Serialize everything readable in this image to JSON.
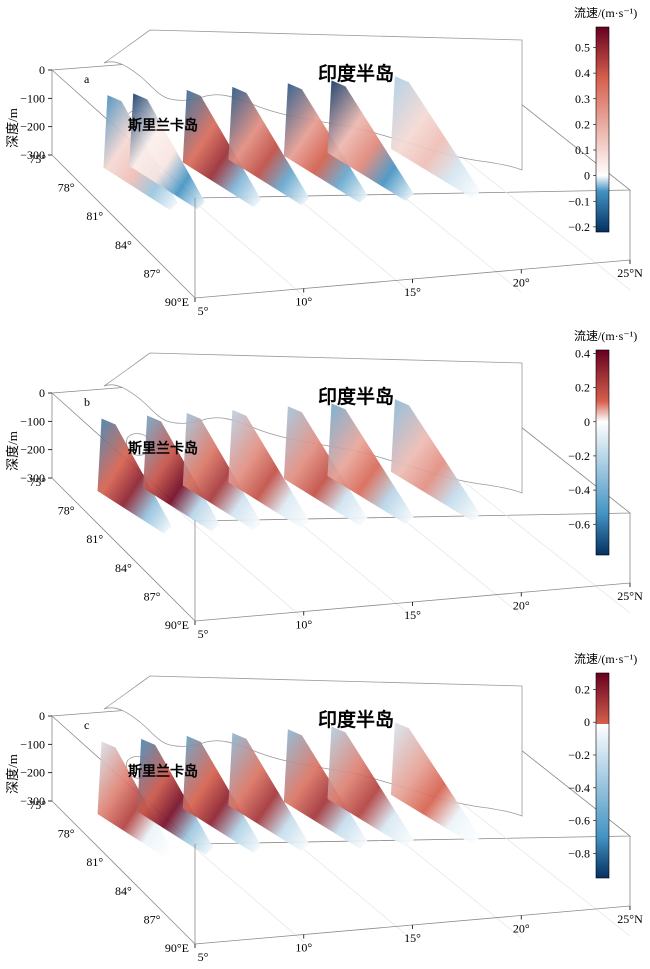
{
  "labels": {
    "region": "印度半岛",
    "island": "斯里兰卡岛",
    "depth_axis": "深度/m",
    "colorbar_title": "流速/(m·s⁻¹)"
  },
  "axes": {
    "depth_ticks": [
      "0",
      "−100",
      "−200",
      "−300"
    ],
    "lon_ticks": [
      "75°",
      "78°",
      "81°",
      "84°",
      "87°",
      "90°E"
    ],
    "lat_ticks": [
      "5°",
      "10°",
      "15°",
      "20°",
      "25°N"
    ]
  },
  "colors": {
    "positive_max": "#67001f",
    "positive": "#d6604d",
    "zero": "#ffffff",
    "negative": "#4393c3",
    "negative_max": "#053061",
    "frame": "#8a8a8a",
    "coast": "#9a9a9a"
  },
  "chart_data": [
    {
      "type": "heatmap",
      "panel": "a",
      "colorbar": {
        "range": [
          -0.22,
          0.58
        ],
        "ticks": [
          0.5,
          0.4,
          0.3,
          0.2,
          0.1,
          0,
          -0.1,
          -0.2
        ]
      },
      "sections": [
        {
          "lat": 6.5,
          "max": 0.12,
          "min": -0.12
        },
        {
          "lat": 7.8,
          "max": 0.05,
          "min": -0.22
        },
        {
          "lat": 10.5,
          "max": 0.45,
          "min": -0.15
        },
        {
          "lat": 12.8,
          "max": 0.35,
          "min": -0.18
        },
        {
          "lat": 15.6,
          "max": 0.3,
          "min": -0.18
        },
        {
          "lat": 17.8,
          "max": 0.22,
          "min": -0.22
        },
        {
          "lat": 21.0,
          "max": 0.12,
          "min": -0.05
        }
      ]
    },
    {
      "type": "heatmap",
      "panel": "b",
      "colorbar": {
        "range": [
          -0.78,
          0.42
        ],
        "ticks": [
          0.4,
          0.2,
          0,
          -0.2,
          -0.4,
          -0.6
        ]
      },
      "sections": [
        {
          "lat": 6.2,
          "max": 0.35,
          "min": -0.45
        },
        {
          "lat": 8.5,
          "max": 0.4,
          "min": -0.3
        },
        {
          "lat": 10.5,
          "max": 0.3,
          "min": -0.2
        },
        {
          "lat": 12.8,
          "max": 0.25,
          "min": -0.15
        },
        {
          "lat": 15.6,
          "max": 0.25,
          "min": -0.2
        },
        {
          "lat": 17.8,
          "max": 0.2,
          "min": -0.3
        },
        {
          "lat": 21.0,
          "max": 0.15,
          "min": -0.25
        }
      ]
    },
    {
      "type": "heatmap",
      "panel": "c",
      "colorbar": {
        "range": [
          -0.95,
          0.3
        ],
        "ticks": [
          0.2,
          0,
          -0.2,
          -0.4,
          -0.6,
          -0.8
        ]
      },
      "sections": [
        {
          "lat": 6.2,
          "max": 0.2,
          "min": -0.1
        },
        {
          "lat": 8.2,
          "max": 0.28,
          "min": -0.5
        },
        {
          "lat": 10.5,
          "max": 0.25,
          "min": -0.4
        },
        {
          "lat": 12.8,
          "max": 0.22,
          "min": -0.3
        },
        {
          "lat": 15.6,
          "max": 0.22,
          "min": -0.3
        },
        {
          "lat": 17.8,
          "max": 0.2,
          "min": -0.2
        },
        {
          "lat": 21.0,
          "max": 0.15,
          "min": -0.1
        }
      ]
    }
  ]
}
